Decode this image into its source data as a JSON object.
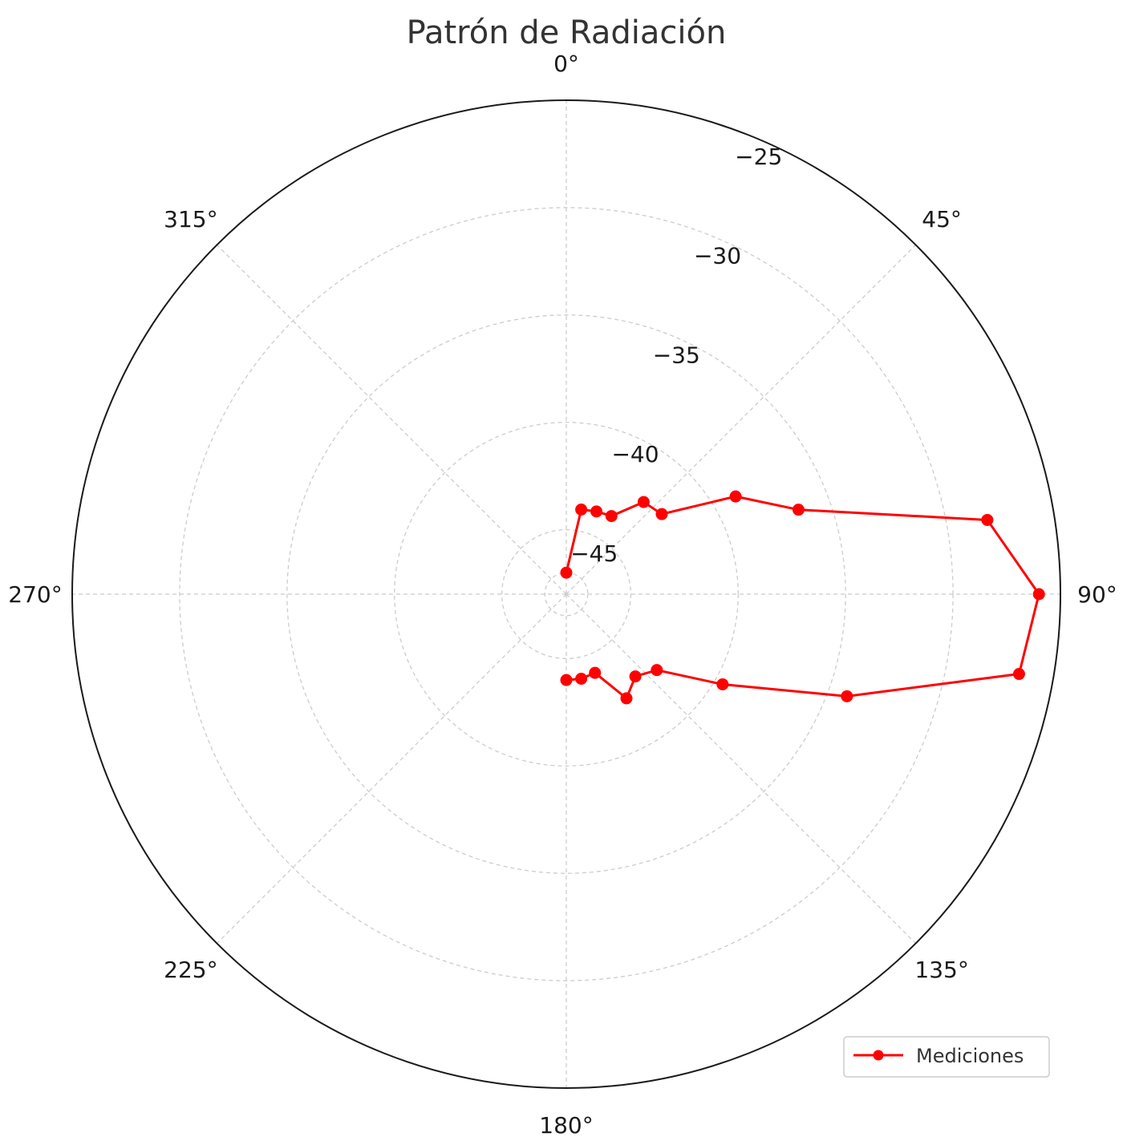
{
  "chart_data": {
    "type": "line",
    "subtype": "polar",
    "title": "Patrón de Radiación",
    "angle_direction": "clockwise",
    "angle_zero": "top",
    "theta_ticks": [
      {
        "deg": 0,
        "label": "0°"
      },
      {
        "deg": 45,
        "label": "45°"
      },
      {
        "deg": 90,
        "label": "90°"
      },
      {
        "deg": 135,
        "label": "135°"
      },
      {
        "deg": 180,
        "label": "180°"
      },
      {
        "deg": 225,
        "label": "225°"
      },
      {
        "deg": 270,
        "label": "270°"
      },
      {
        "deg": 315,
        "label": "315°"
      }
    ],
    "r_ticks": [
      {
        "value": -45,
        "label": "−45"
      },
      {
        "value": -40,
        "label": "−40"
      },
      {
        "value": -35,
        "label": "−35"
      },
      {
        "value": -30,
        "label": "−30"
      },
      {
        "value": -25,
        "label": "−25"
      }
    ],
    "r_gridlines": [
      -47,
      -45,
      -40,
      -35,
      -30,
      -25
    ],
    "rlim": [
      -48,
      -25
    ],
    "grid": true,
    "legend_position": "bottom-right",
    "series": [
      {
        "name": "Mediciones",
        "color": "#ff0000",
        "marker": "circle",
        "points": [
          {
            "theta": 0,
            "r": -47.0
          },
          {
            "theta": 10,
            "r": -44.0
          },
          {
            "theta": 20,
            "r": -43.9
          },
          {
            "theta": 30,
            "r": -43.8
          },
          {
            "theta": 40,
            "r": -42.4
          },
          {
            "theta": 50,
            "r": -42.2
          },
          {
            "theta": 60,
            "r": -38.9
          },
          {
            "theta": 70,
            "r": -36.5
          },
          {
            "theta": 80,
            "r": -28.1
          },
          {
            "theta": 90,
            "r": -26.0
          },
          {
            "theta": 100,
            "r": -26.6
          },
          {
            "theta": 110,
            "r": -34.1
          },
          {
            "theta": 120,
            "r": -39.6
          },
          {
            "theta": 130,
            "r": -42.5
          },
          {
            "theta": 140,
            "r": -43.0
          },
          {
            "theta": 150,
            "r": -42.4
          },
          {
            "theta": 160,
            "r": -44.1
          },
          {
            "theta": 170,
            "r": -44.0
          },
          {
            "theta": 180,
            "r": -44.0
          }
        ]
      }
    ]
  }
}
